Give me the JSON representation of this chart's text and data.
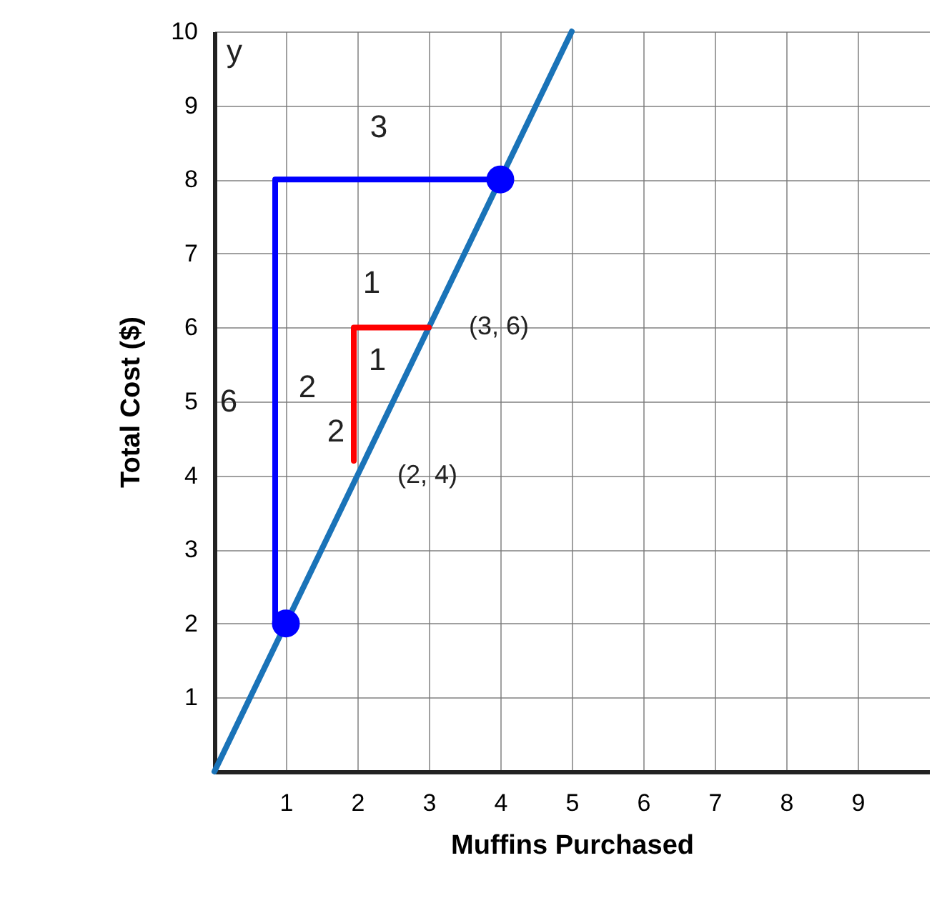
{
  "chart_data": {
    "type": "line",
    "xlabel": "Muffins Purchased",
    "ylabel": "Total Cost ($)",
    "xlim": [
      0,
      10
    ],
    "xticks": [
      1,
      2,
      3,
      4,
      5,
      6,
      7,
      8,
      9
    ],
    "ylim": [
      0,
      10
    ],
    "yticks": [
      1,
      2,
      3,
      4,
      5,
      6,
      7,
      8,
      9,
      10
    ],
    "grid": true,
    "series": [
      {
        "color": "#1a73b8",
        "x": [
          0,
          5
        ],
        "values": [
          0,
          10
        ]
      },
      {
        "color": "#0000ff",
        "x": [
          4,
          0.85,
          0.85
        ],
        "values": [
          8,
          8,
          2
        ]
      },
      {
        "color": "#ff0000",
        "x": [
          3,
          1.95,
          1.95
        ],
        "values": [
          6,
          6,
          4.2
        ]
      },
      {
        "type": "scatter",
        "color": "#0000ff",
        "x": [
          1,
          4
        ],
        "values": [
          2,
          8
        ]
      }
    ],
    "annotations": [
      "y",
      {
        "text": "(3, 6)",
        "x": 3,
        "y": 6
      },
      {
        "text": "(2, 4)",
        "x": 2,
        "y": 4
      },
      "3",
      "6",
      "1",
      "2",
      "1",
      "2"
    ]
  }
}
